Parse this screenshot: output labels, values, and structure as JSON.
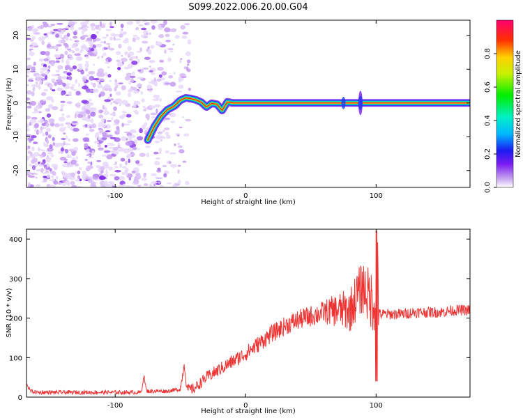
{
  "title": "S099.2022.006.20.00.G04",
  "chart_data": [
    {
      "type": "heatmap",
      "xlabel": "Height of straight line (km)",
      "ylabel": "Frequency (Hz)",
      "xlim": [
        -168,
        172
      ],
      "ylim": [
        -25,
        24.5
      ],
      "xticks": [
        -100,
        0,
        100
      ],
      "yticks": [
        -20,
        -10,
        0,
        10,
        20
      ],
      "ridge": {
        "x": [
          -75,
          -70,
          -65,
          -60,
          -55,
          -50,
          -46,
          -42,
          -38,
          -34,
          -30,
          -26,
          -22,
          -18,
          -14,
          -10,
          -5,
          0,
          10,
          30,
          50,
          70,
          90,
          120,
          150,
          172
        ],
        "freq": [
          -11,
          -7,
          -4,
          -2,
          -1,
          0.8,
          1.5,
          1.3,
          0.9,
          0.2,
          -1.2,
          -0.1,
          -0.4,
          -2.2,
          0.3,
          0.0,
          0.0,
          0.0,
          0.0,
          0.0,
          0.0,
          0.0,
          0.0,
          0.0,
          0.0,
          0.0
        ]
      },
      "colorbar": {
        "label": "Normalized spectral amplitude",
        "ticks": [
          "0.0",
          "0.2",
          "0.4",
          "0.6",
          "0.8"
        ],
        "range": [
          0,
          1
        ]
      }
    },
    {
      "type": "line",
      "xlabel": "Height of straight line (km)",
      "ylabel": "SNR (10 * v/v)",
      "xlim": [
        -168,
        172
      ],
      "ylim": [
        0,
        425
      ],
      "xticks": [
        -100,
        0,
        100
      ],
      "yticks": [
        0,
        100,
        200,
        300,
        400
      ],
      "series": [
        {
          "color": "#ee3333",
          "x": [
            -168,
            -165,
            -160,
            -140,
            -120,
            -100,
            -80,
            -78,
            -76,
            -70,
            -60,
            -50,
            -47,
            -45,
            -40,
            -30,
            -20,
            -10,
            0,
            10,
            20,
            30,
            40,
            50,
            60,
            70,
            80,
            85,
            90,
            95,
            100,
            101,
            102,
            110,
            120,
            130,
            140,
            150,
            160,
            172
          ],
          "y": [
            35,
            15,
            12,
            12,
            12,
            12,
            12,
            55,
            15,
            15,
            15,
            20,
            85,
            20,
            20,
            50,
            70,
            90,
            110,
            135,
            160,
            180,
            195,
            205,
            215,
            220,
            220,
            255,
            280,
            250,
            240,
            420,
            210,
            210,
            210,
            215,
            215,
            215,
            220,
            220
          ]
        }
      ]
    }
  ]
}
